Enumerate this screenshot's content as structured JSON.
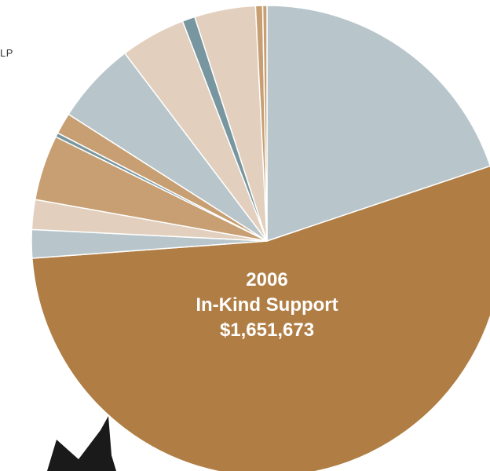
{
  "edge_fragment": "LP",
  "chart_data": {
    "type": "pie",
    "center_label": {
      "year": "2006",
      "title": "In-Kind Support",
      "total": "$1,651,673"
    },
    "start_angle_deg": 0,
    "direction": "clockwise",
    "slices": [
      {
        "value": 20.4,
        "color": "#b8c6cb"
      },
      {
        "value": 55.5,
        "color": "#b07e45"
      },
      {
        "value": 2.0,
        "color": "#b8c6cb"
      },
      {
        "value": 2.1,
        "color": "#e2cfbd"
      },
      {
        "value": 4.6,
        "color": "#c79f73"
      },
      {
        "value": 0.3,
        "color": "#7896a0"
      },
      {
        "value": 1.5,
        "color": "#c79f73"
      },
      {
        "value": 5.8,
        "color": "#b8c6cb"
      },
      {
        "value": 4.6,
        "color": "#e2cfbd"
      },
      {
        "value": 0.9,
        "color": "#7896a0"
      },
      {
        "value": 4.3,
        "color": "#e2cfbd"
      },
      {
        "value": 0.5,
        "color": "#c79f73"
      },
      {
        "value": 0.3,
        "color": "#c79f73"
      }
    ]
  }
}
